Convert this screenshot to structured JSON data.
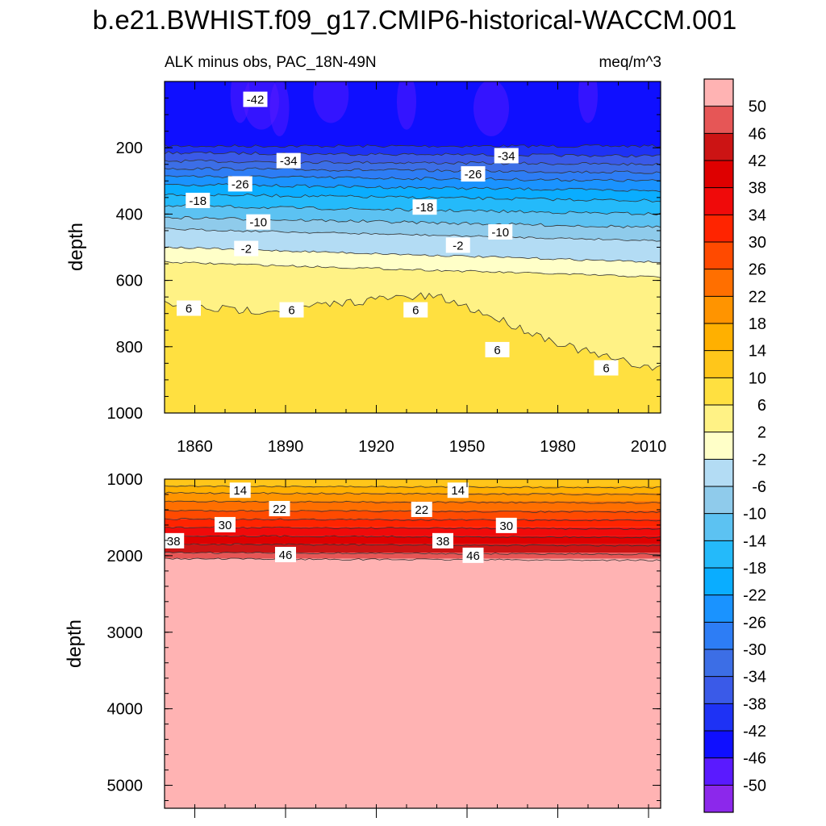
{
  "chart_data": [
    {
      "type": "contour",
      "title": "b.e21.BWHIST.f09_g17.CMIP6-historical-WACCM.001",
      "left_subtitle": "ALK minus obs, PAC_18N-49N",
      "right_subtitle": "meq/m^3",
      "ylabel": "depth",
      "xlabel": "",
      "xlim": [
        1850,
        2014
      ],
      "ylim": [
        1000,
        0
      ],
      "x_ticks": [
        "1860",
        "1890",
        "1920",
        "1950",
        "1980",
        "2010"
      ],
      "y_ticks": [
        "200",
        "400",
        "600",
        "800",
        "1000"
      ],
      "contour_levels": [
        -50,
        -46,
        -42,
        -38,
        -34,
        -30,
        -26,
        -22,
        -18,
        -14,
        -10,
        -6,
        -2,
        2,
        6,
        10,
        14,
        18,
        22,
        26,
        30,
        34,
        38,
        42,
        46,
        50
      ],
      "level_depths": [
        {
          "level": -42,
          "depth_start": 195,
          "depth_end": 195
        },
        {
          "level": -38,
          "depth_start": 215,
          "depth_end": 225
        },
        {
          "level": -34,
          "depth_start": 240,
          "depth_end": 250
        },
        {
          "level": -30,
          "depth_start": 262,
          "depth_end": 275
        },
        {
          "level": -26,
          "depth_start": 285,
          "depth_end": 300
        },
        {
          "level": -22,
          "depth_start": 310,
          "depth_end": 330
        },
        {
          "level": -18,
          "depth_start": 340,
          "depth_end": 360
        },
        {
          "level": -14,
          "depth_start": 375,
          "depth_end": 400
        },
        {
          "level": -10,
          "depth_start": 410,
          "depth_end": 440
        },
        {
          "level": -6,
          "depth_start": 445,
          "depth_end": 480
        },
        {
          "level": -2,
          "depth_start": 500,
          "depth_end": 545
        },
        {
          "level": 2,
          "depth_start": 545,
          "depth_end": 590
        },
        {
          "level": 6,
          "depth_start": 660,
          "depth_end": 830
        }
      ],
      "contour_labels": [
        {
          "text": "-42",
          "x": 1880,
          "depth": 55
        },
        {
          "text": "-34",
          "x": 1891,
          "depth": 240
        },
        {
          "text": "-34",
          "x": 1963,
          "depth": 225
        },
        {
          "text": "-26",
          "x": 1875,
          "depth": 310
        },
        {
          "text": "-26",
          "x": 1952,
          "depth": 280
        },
        {
          "text": "-18",
          "x": 1861,
          "depth": 360
        },
        {
          "text": "-18",
          "x": 1936,
          "depth": 380
        },
        {
          "text": "-10",
          "x": 1881,
          "depth": 425
        },
        {
          "text": "-10",
          "x": 1961,
          "depth": 455
        },
        {
          "text": "-2",
          "x": 1877,
          "depth": 505
        },
        {
          "text": "-2",
          "x": 1947,
          "depth": 495
        },
        {
          "text": "6",
          "x": 1858,
          "depth": 685
        },
        {
          "text": "6",
          "x": 1892,
          "depth": 690
        },
        {
          "text": "6",
          "x": 1933,
          "depth": 690
        },
        {
          "text": "6",
          "x": 1960,
          "depth": 810
        },
        {
          "text": "6",
          "x": 1996,
          "depth": 865
        }
      ]
    },
    {
      "type": "contour",
      "ylabel": "depth",
      "xlim": [
        1850,
        2014
      ],
      "ylim": [
        5300,
        1000
      ],
      "y_ticks": [
        "1000",
        "2000",
        "3000",
        "4000",
        "5000"
      ],
      "level_depths": [
        {
          "level": 10,
          "depth": 1000
        },
        {
          "level": 14,
          "depth": 1090
        },
        {
          "level": 18,
          "depth": 1180
        },
        {
          "level": 22,
          "depth": 1290
        },
        {
          "level": 26,
          "depth": 1410
        },
        {
          "level": 30,
          "depth": 1520
        },
        {
          "level": 34,
          "depth": 1630
        },
        {
          "level": 38,
          "depth": 1740
        },
        {
          "level": 42,
          "depth": 1850
        },
        {
          "level": 46,
          "depth": 1960
        },
        {
          "level": 50,
          "depth": 2040
        }
      ],
      "contour_labels": [
        {
          "text": "14",
          "x": 1875,
          "depth": 1150
        },
        {
          "text": "14",
          "x": 1947,
          "depth": 1150
        },
        {
          "text": "22",
          "x": 1888,
          "depth": 1390
        },
        {
          "text": "22",
          "x": 1935,
          "depth": 1400
        },
        {
          "text": "30",
          "x": 1870,
          "depth": 1600
        },
        {
          "text": "30",
          "x": 1963,
          "depth": 1610
        },
        {
          "text": "38",
          "x": 1853,
          "depth": 1810
        },
        {
          "text": "38",
          "x": 1942,
          "depth": 1810
        },
        {
          "text": "46",
          "x": 1890,
          "depth": 1990
        },
        {
          "text": "46",
          "x": 1952,
          "depth": 2000
        }
      ]
    }
  ],
  "colorbar": {
    "labels": [
      "50",
      "46",
      "42",
      "38",
      "34",
      "30",
      "26",
      "22",
      "18",
      "14",
      "10",
      "6",
      "2",
      "-2",
      "-6",
      "-10",
      "-14",
      "-18",
      "-22",
      "-26",
      "-30",
      "-34",
      "-38",
      "-42",
      "-46",
      "-50"
    ],
    "colors": [
      "#FFB3B3",
      "#E65656",
      "#CC1414",
      "#DE0000",
      "#F00A0A",
      "#FF2400",
      "#FF4A00",
      "#FF6F00",
      "#FF9400",
      "#FFB000",
      "#FFC61A",
      "#FFE040",
      "#FFF285",
      "#FFFFC8",
      "#B3DCF4",
      "#8FCBEB",
      "#5CC2F2",
      "#24BAFA",
      "#0AADFF",
      "#1A93FF",
      "#2D7DF5",
      "#3C6EE6",
      "#3A5AE8",
      "#1E32F5",
      "#0F0FFF",
      "#5A1AFF",
      "#8C28EB"
    ]
  }
}
